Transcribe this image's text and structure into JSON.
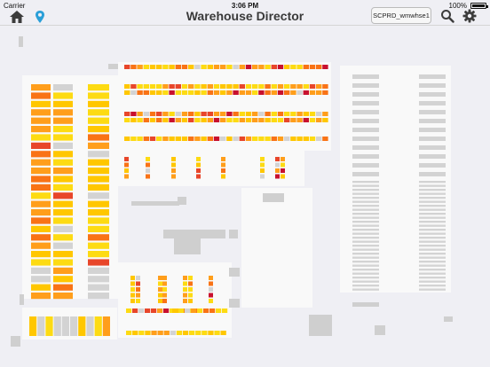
{
  "status_bar": {
    "carrier": "Carrier",
    "time": "3:06 PM",
    "battery": "100%",
    "battery_level": 1.0
  },
  "nav": {
    "title": "Warehouse Director",
    "site_button": "SCPRD_wmwhse1",
    "icons": {
      "home": "home-icon",
      "location": "location-pin-icon",
      "search": "search-icon",
      "settings": "gear-icon"
    }
  },
  "heat_colors": [
    "#fddb13",
    "#ffc700",
    "#ff9e1b",
    "#f97316",
    "#e8462a",
    "#c8102e",
    "#d3d3d3"
  ]
}
